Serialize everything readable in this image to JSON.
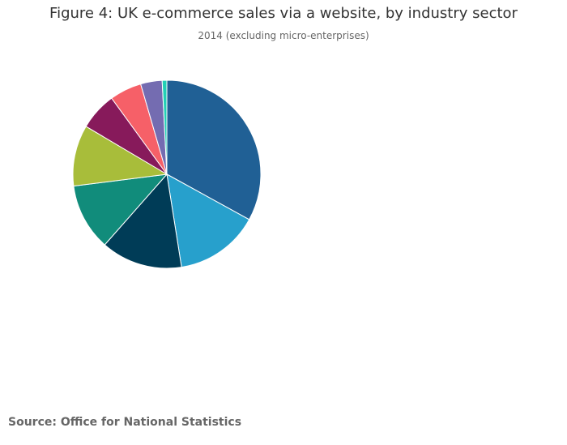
{
  "chart_data": {
    "type": "pie",
    "title": "Figure 4: UK e-commerce sales via a website, by industry sector",
    "subtitle": "2014 (excluding micro-enterprises)",
    "source": "Source: Office for National Statistics",
    "slices": [
      {
        "value": 33.0,
        "color": "#206095"
      },
      {
        "value": 14.5,
        "color": "#27a0cc"
      },
      {
        "value": 14.0,
        "color": "#003c57"
      },
      {
        "value": 11.5,
        "color": "#118c7b"
      },
      {
        "value": 10.5,
        "color": "#a8bd3a"
      },
      {
        "value": 6.5,
        "color": "#871a5b"
      },
      {
        "value": 5.5,
        "color": "#f66068"
      },
      {
        "value": 3.7,
        "color": "#746cb1"
      },
      {
        "value": 0.8,
        "color": "#22d0b6"
      }
    ]
  }
}
